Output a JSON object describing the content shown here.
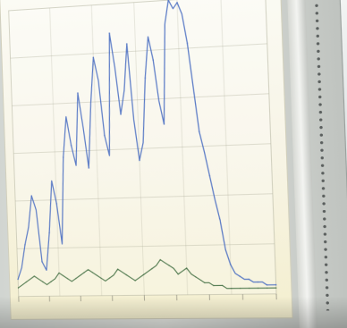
{
  "photo": {
    "subject": "monitor-displaying-line-chart"
  },
  "chart_data": {
    "type": "line",
    "title": "",
    "xlabel": "",
    "ylabel": "",
    "ylim": [
      0,
      100
    ],
    "x": [
      0,
      1,
      2,
      3,
      4,
      5,
      6,
      7,
      8,
      9,
      10,
      11,
      12,
      13,
      14,
      15,
      16,
      17,
      18,
      19,
      20,
      21,
      22,
      23,
      24,
      25,
      26,
      27,
      28,
      29,
      30,
      31,
      32,
      33,
      34,
      35,
      36,
      37,
      38,
      39,
      40,
      41,
      42,
      43,
      44,
      45,
      46,
      47,
      48,
      49,
      50,
      51,
      52,
      53,
      54,
      55,
      56,
      57,
      58,
      59,
      60
    ],
    "series": [
      {
        "color": "#4b6fc2",
        "values": [
          6,
          10,
          18,
          24,
          35,
          30,
          12,
          9,
          22,
          40,
          32,
          18,
          48,
          62,
          52,
          45,
          70,
          58,
          44,
          66,
          82,
          74,
          55,
          48,
          90,
          78,
          62,
          70,
          86,
          60,
          46,
          52,
          74,
          88,
          80,
          66,
          58,
          92,
          100,
          97,
          99,
          95,
          85,
          70,
          55,
          48,
          40,
          32,
          25,
          15,
          10,
          7,
          6,
          5,
          5,
          4,
          4,
          4,
          3,
          3,
          3
        ]
      },
      {
        "color": "#3c6a3d",
        "values": [
          3,
          4,
          5,
          6,
          7,
          6,
          5,
          4,
          5,
          6,
          8,
          7,
          6,
          5,
          6,
          7,
          8,
          9,
          8,
          7,
          6,
          5,
          6,
          7,
          9,
          8,
          7,
          6,
          5,
          6,
          7,
          8,
          9,
          10,
          12,
          11,
          10,
          9,
          7,
          8,
          9,
          7,
          6,
          5,
          4,
          4,
          3,
          3,
          3,
          2,
          2,
          2,
          2,
          2,
          2,
          2,
          2,
          2,
          2,
          2,
          2
        ]
      }
    ],
    "grid": true,
    "x_tick_labels_legible": false
  }
}
